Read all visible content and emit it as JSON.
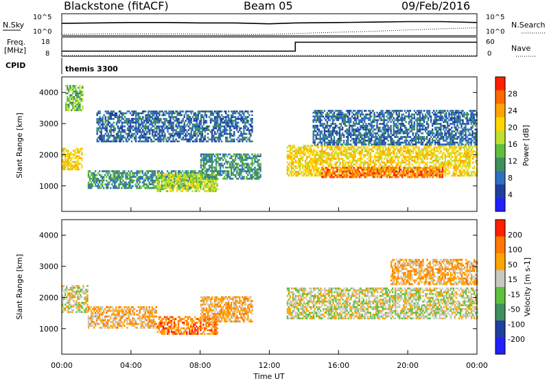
{
  "header": {
    "station": "Blackstone (fitACF)",
    "beam": "Beam 05",
    "date": "09/Feb/2016"
  },
  "chart_data": [
    {
      "type": "line",
      "panel": "noise",
      "left_label": "N.Sky",
      "right_label": "N.Search",
      "left_ticks": [
        "10^5",
        "10^0"
      ],
      "right_ticks": [
        "10^5",
        "10^0"
      ],
      "series": [
        {
          "name": "N.Sky",
          "style": "solid",
          "x": [
            0,
            2,
            4,
            6,
            8,
            10,
            12,
            13.5,
            16,
            18,
            20,
            22,
            24
          ],
          "y": [
            2.8,
            2.9,
            3.0,
            3.0,
            2.9,
            2.9,
            2.7,
            2.9,
            3.0,
            3.1,
            3.2,
            3.2,
            3.0
          ]
        },
        {
          "name": "N.Search",
          "style": "dotted",
          "x": [
            0,
            2,
            4,
            6,
            8,
            10,
            12,
            13.5,
            16,
            18,
            20,
            22,
            24
          ],
          "y": [
            0.3,
            0.4,
            0.4,
            0.4,
            0.4,
            0.3,
            0.3,
            0.5,
            0.8,
            1.0,
            1.3,
            1.6,
            1.8
          ]
        }
      ],
      "xlim": [
        0,
        24
      ],
      "ylim": [
        0,
        5
      ]
    },
    {
      "type": "line",
      "panel": "frequency",
      "left_label": "Freq.",
      "left_unit": "[MHz]",
      "right_label": "Nave",
      "left_ticks": [
        "18",
        "8"
      ],
      "right_ticks": [
        "60",
        "0"
      ],
      "series": [
        {
          "name": "Freq.",
          "style": "solid",
          "x": [
            0,
            13.5,
            13.5,
            24
          ],
          "y": [
            10.2,
            10.2,
            15.8,
            15.8
          ]
        },
        {
          "name": "Nave",
          "style": "dotted",
          "x": [
            0,
            24
          ],
          "y": [
            7.5,
            7.5
          ]
        }
      ],
      "xlim": [
        0,
        24
      ],
      "ylim": [
        7,
        19
      ]
    },
    {
      "type": "text",
      "panel": "cpid",
      "label": "CPID",
      "program": "themis 3300"
    },
    {
      "type": "heatmap",
      "panel": "power",
      "ylabel": "Slant Range [km]",
      "yticks": [
        1000,
        2000,
        3000,
        4000
      ],
      "ylim": [
        180,
        4500
      ],
      "colorbar_label": "Power [dB]",
      "colorbar_ticks": [
        "28",
        "24",
        "20",
        "16",
        "12",
        "8",
        "4"
      ],
      "color_scale": [
        "#2020ff",
        "#1f3f9f",
        "#2f6fbf",
        "#3f8f5f",
        "#5fbf3f",
        "#bfdf2f",
        "#ffd700",
        "#ffa500",
        "#ff6a00",
        "#ff2000"
      ],
      "regions": [
        {
          "t": [
            0.0,
            1.2
          ],
          "r": [
            1500,
            2200
          ],
          "v": 6
        },
        {
          "t": [
            0.2,
            1.2
          ],
          "r": [
            3400,
            4200
          ],
          "v": 4
        },
        {
          "t": [
            1.5,
            8.0
          ],
          "r": [
            900,
            1500
          ],
          "v": 3
        },
        {
          "t": [
            5.5,
            9.0
          ],
          "r": [
            800,
            1400
          ],
          "v": 5
        },
        {
          "t": [
            8.0,
            11.5
          ],
          "r": [
            1200,
            2000
          ],
          "v": 3
        },
        {
          "t": [
            2.0,
            11.0
          ],
          "r": [
            2400,
            3400
          ],
          "v": 2
        },
        {
          "t": [
            13.0,
            24.0
          ],
          "r": [
            1300,
            2300
          ],
          "v": 6
        },
        {
          "t": [
            15.0,
            22.0
          ],
          "r": [
            1250,
            1600
          ],
          "v": 8
        },
        {
          "t": [
            14.5,
            24.0
          ],
          "r": [
            2300,
            3400
          ],
          "v": 2
        }
      ]
    },
    {
      "type": "heatmap",
      "panel": "velocity",
      "ylabel": "Slant Range [km]",
      "yticks": [
        1000,
        2000,
        3000,
        4000
      ],
      "ylim": [
        180,
        4500
      ],
      "colorbar_label": "Velocity [m s-1]",
      "colorbar_ticks": [
        "200",
        "100",
        "50",
        "15",
        "-15",
        "-50",
        "-100",
        "-200"
      ],
      "color_scale": [
        "#2020ff",
        "#1f3f9f",
        "#3f8f5f",
        "#5fbf3f",
        "#c8c8c0",
        "#ffa500",
        "#ff7a00",
        "#ff2000"
      ],
      "regions": [
        {
          "t": [
            0.0,
            1.5
          ],
          "r": [
            1500,
            2400
          ],
          "v": 4
        },
        {
          "t": [
            1.5,
            5.5
          ],
          "r": [
            1000,
            1700
          ],
          "v": 5
        },
        {
          "t": [
            5.5,
            9.0
          ],
          "r": [
            800,
            1400
          ],
          "v": 6
        },
        {
          "t": [
            8.0,
            11.0
          ],
          "r": [
            1200,
            2000
          ],
          "v": 5
        },
        {
          "t": [
            13.0,
            24.0
          ],
          "r": [
            1300,
            2300
          ],
          "v": 4
        },
        {
          "t": [
            19.0,
            24.0
          ],
          "r": [
            2400,
            3200
          ],
          "v": 5
        }
      ]
    }
  ],
  "axis": {
    "x_ticks": [
      "00:00",
      "04:00",
      "08:00",
      "12:00",
      "16:00",
      "20:00",
      "00:00"
    ],
    "x_label": "Time UT"
  }
}
